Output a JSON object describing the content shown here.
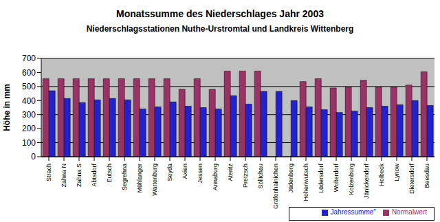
{
  "chart_data": {
    "type": "bar",
    "title": "Monatssumme des Niederschlages Jahr 2003",
    "subtitle": "Niederschlagsstationen Nuthe-Urstromtal und Landkreis Wittenberg",
    "y_label": "Höhe in mm",
    "categories": [
      "Strach",
      "Zahna N",
      "Zahna S",
      "Abtsdorf",
      "Eutsch",
      "Segrehna",
      "Mühlanger",
      "Wartenburg",
      "Seyda",
      "Axien",
      "Jessen",
      "Annaburg",
      "Ateritz",
      "Pretzsch",
      "Söllichau",
      "Gräfenhainichen",
      "Jüdenberg",
      "Hohenwutsch",
      "Lüdersdorf",
      "Wolterdorf",
      "Kolzenburg",
      "Jänickendorf",
      "Holbeck",
      "Lynow",
      "Dietersdorf",
      "Beesdau"
    ],
    "series": [
      {
        "name": "Normalwert",
        "color": "#993366",
        "values": [
          555,
          555,
          555,
          555,
          555,
          555,
          555,
          555,
          555,
          480,
          555,
          480,
          610,
          610,
          610,
          null,
          null,
          535,
          555,
          490,
          495,
          545,
          495,
          495,
          510,
          605
        ]
      },
      {
        "name": "Jahressumme\"",
        "color": "#2222cc",
        "values": [
          470,
          415,
          385,
          405,
          415,
          405,
          340,
          355,
          390,
          360,
          350,
          340,
          435,
          375,
          465,
          465,
          400,
          355,
          335,
          315,
          325,
          350,
          360,
          370,
          400,
          365
        ]
      }
    ],
    "ylim": [
      0,
      700
    ],
    "yticks": [
      0,
      100,
      200,
      300,
      400,
      500,
      600,
      700
    ],
    "grid": true,
    "legend": "bottom-right"
  }
}
